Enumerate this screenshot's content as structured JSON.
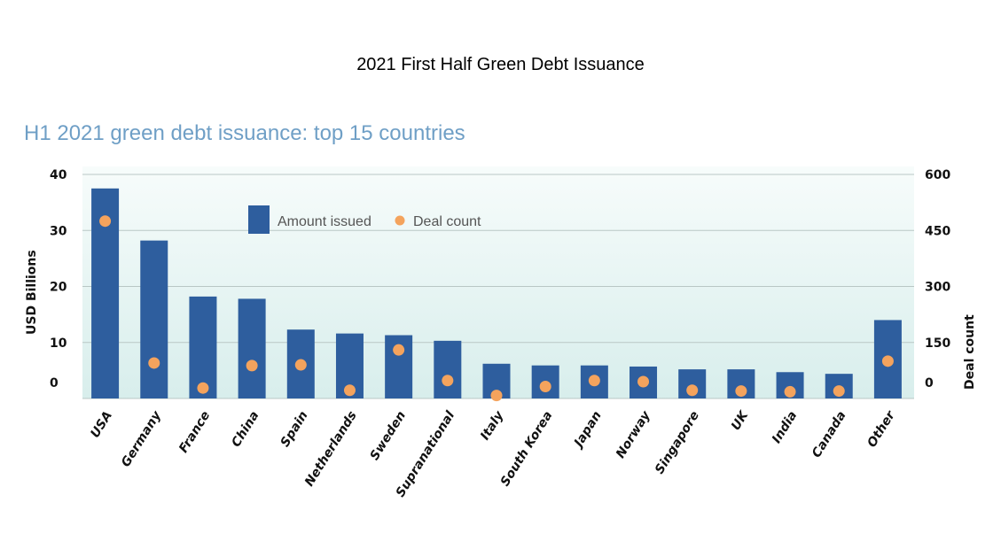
{
  "page": {
    "title": "2021 First Half Green Debt Issuance"
  },
  "chart_data": {
    "type": "bar",
    "subtitle": "H1 2021 green debt issuance: top 15 countries",
    "categories": [
      "USA",
      "Germany",
      "France",
      "China",
      "Spain",
      "Netherlands",
      "Sweden",
      "Supranational",
      "Italy",
      "South Korea",
      "Japan",
      "Norway",
      "Singapore",
      "UK",
      "India",
      "Canada",
      "Other"
    ],
    "series": [
      {
        "name": "Amount issued",
        "axis": "left",
        "kind": "bar",
        "values": [
          37.5,
          28.2,
          18.2,
          17.8,
          12.3,
          11.6,
          11.3,
          10.3,
          6.2,
          5.9,
          5.9,
          5.7,
          5.2,
          5.2,
          4.7,
          4.4,
          14.0
        ],
        "color": "#2e5e9e"
      },
      {
        "name": "Deal count",
        "axis": "right",
        "kind": "point",
        "values": [
          475,
          95,
          28,
          88,
          90,
          22,
          130,
          48,
          8,
          32,
          48,
          45,
          22,
          20,
          18,
          20,
          100
        ],
        "color": "#f4a35d"
      }
    ],
    "ylabel_left": "USD Billions",
    "ylabel_right": "Deal count",
    "yticks_left": [
      "0",
      "10",
      "20",
      "30",
      "40"
    ],
    "yticks_right": [
      "0",
      "150",
      "300",
      "450",
      "600"
    ],
    "ylim_left": [
      0,
      40
    ],
    "ylim_right": [
      0,
      600
    ],
    "grid": true,
    "legend": "top-center",
    "colors": {
      "plot_bg": "#d8eeec",
      "grid": "#b9c7c5"
    }
  }
}
